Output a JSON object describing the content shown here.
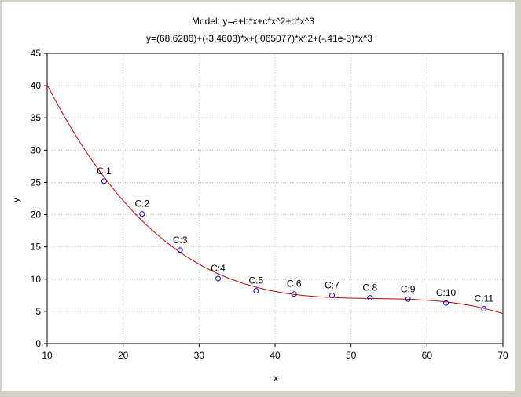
{
  "chart_data": {
    "type": "scatter",
    "title": "Model: y=a+b*x+c*x^2+d*x^3",
    "subtitle": "y=(68.6286)+(-3.4603)*x+(.065077)*x^2+(-.41e-3)*x^3",
    "xlabel": "x",
    "ylabel": "y",
    "xlim": [
      10,
      70
    ],
    "ylim": [
      0,
      45
    ],
    "xticks": [
      10,
      20,
      30,
      40,
      50,
      60,
      70
    ],
    "yticks": [
      0,
      5,
      10,
      15,
      20,
      25,
      30,
      35,
      40,
      45
    ],
    "grid": true,
    "points": [
      {
        "label": "C:1",
        "x": 17.5,
        "y": 25.2
      },
      {
        "label": "C:2",
        "x": 22.5,
        "y": 20.1
      },
      {
        "label": "C:3",
        "x": 27.5,
        "y": 14.5
      },
      {
        "label": "C:4",
        "x": 32.5,
        "y": 10.1
      },
      {
        "label": "C:5",
        "x": 37.5,
        "y": 8.2
      },
      {
        "label": "C:6",
        "x": 42.5,
        "y": 7.7
      },
      {
        "label": "C:7",
        "x": 47.5,
        "y": 7.5
      },
      {
        "label": "C:8",
        "x": 52.5,
        "y": 7.1
      },
      {
        "label": "C:9",
        "x": 57.5,
        "y": 6.9
      },
      {
        "label": "C:10",
        "x": 62.5,
        "y": 6.3
      },
      {
        "label": "C:11",
        "x": 67.5,
        "y": 5.4
      }
    ],
    "fit": {
      "a": 68.6286,
      "b": -3.4603,
      "c": 0.065077,
      "d": -0.00041
    },
    "colors": {
      "points": "#0000cc",
      "fit": "#cc0000",
      "grid": "#c0c0c0",
      "axes": "#000000"
    }
  }
}
